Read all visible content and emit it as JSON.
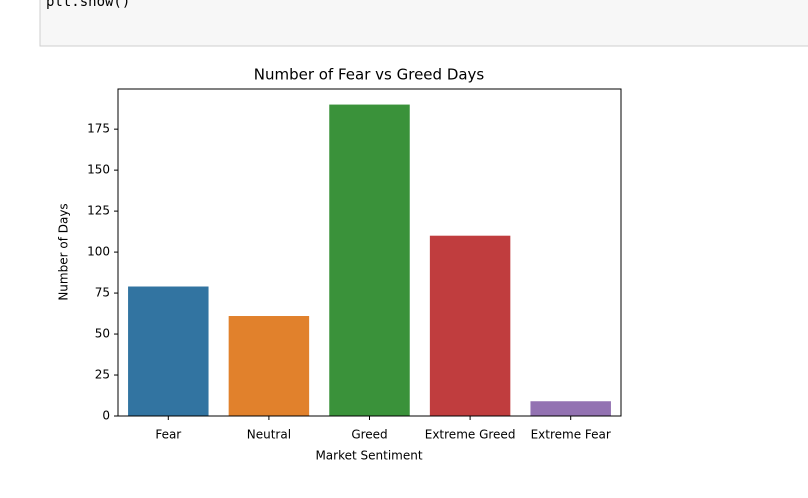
{
  "code": "plt.show()",
  "chart_data": {
    "type": "bar",
    "title": "Number of Fear vs Greed Days",
    "x_label": "Market Sentiment",
    "y_label": "Number of Days",
    "categories": [
      "Fear",
      "Neutral",
      "Greed",
      "Extreme Greed",
      "Extreme Fear"
    ],
    "values": [
      79,
      61,
      190,
      110,
      9
    ],
    "colors": [
      "#3274a1",
      "#e1812c",
      "#3a923a",
      "#c03d3e",
      "#9372b2"
    ],
    "ylim": [
      0,
      199.5
    ],
    "yticks": [
      0,
      25,
      50,
      75,
      100,
      125,
      150,
      175
    ],
    "grid": false
  }
}
